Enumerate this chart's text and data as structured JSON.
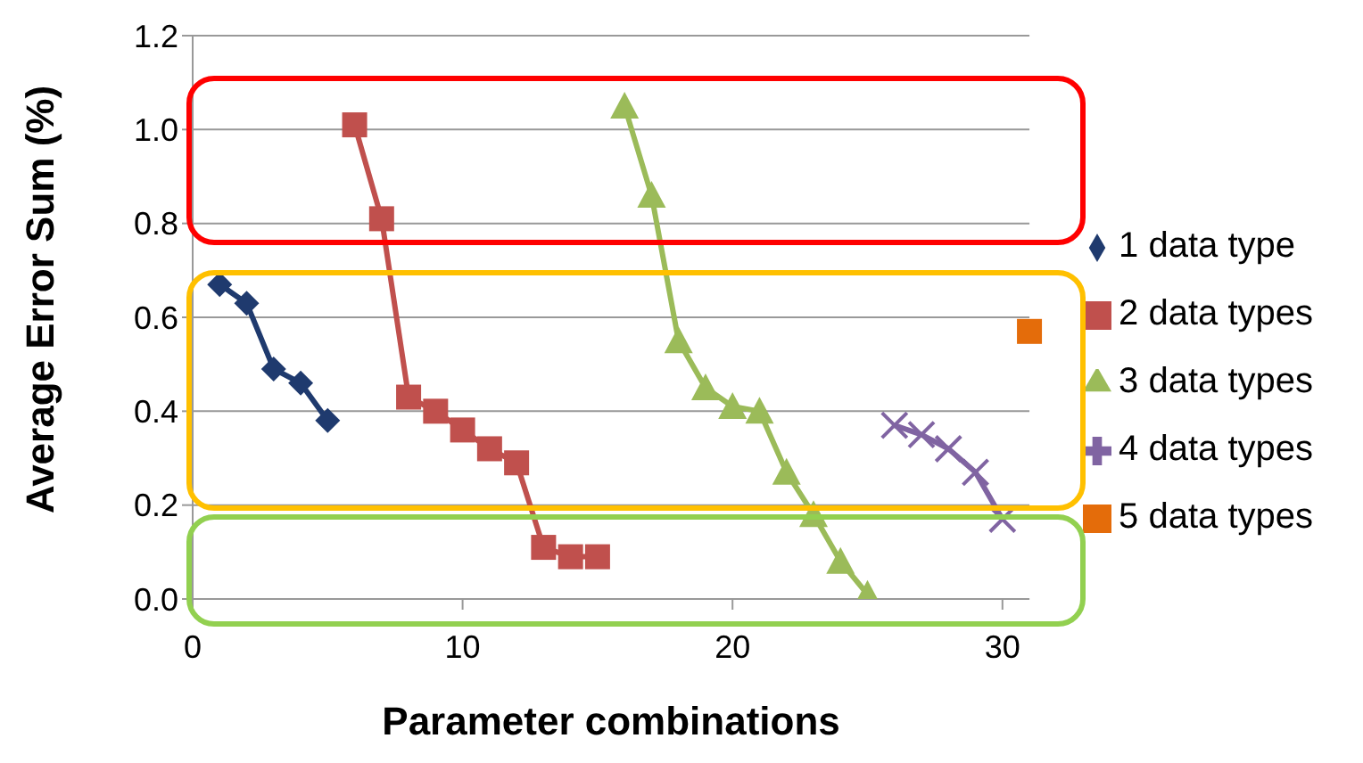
{
  "chart_data": {
    "type": "line",
    "xlabel": "Parameter combinations",
    "ylabel": "Average Error Sum (%)",
    "xlim": [
      0,
      31
    ],
    "xticks": [
      0,
      10,
      20,
      30
    ],
    "ylim": [
      0,
      1.2
    ],
    "yticks": [
      {
        "value": 0,
        "label": "0.0"
      },
      {
        "value": 0.2,
        "label": "0.2"
      },
      {
        "value": 0.4,
        "label": "0.4"
      },
      {
        "value": 0.6,
        "label": "0.6"
      },
      {
        "value": 0.8,
        "label": "0.8"
      },
      {
        "value": 1,
        "label": "1.0"
      },
      {
        "value": 1.2,
        "label": "1.2"
      }
    ],
    "grid": "y",
    "legend": "right",
    "line_style": "solid",
    "series": [
      {
        "name": "1 data type",
        "color": "#1f3a6e",
        "marker": "diamond",
        "x": [
          1,
          2,
          3,
          4,
          5
        ],
        "values": [
          0.67,
          0.63,
          0.49,
          0.46,
          0.38
        ]
      },
      {
        "name": "2 data types",
        "color": "#c0504d",
        "marker": "square",
        "x": [
          6,
          7,
          8,
          9,
          10,
          11,
          12,
          13,
          14,
          15
        ],
        "values": [
          1.01,
          0.81,
          0.43,
          0.4,
          0.36,
          0.32,
          0.29,
          0.11,
          0.09,
          0.09
        ]
      },
      {
        "name": "3 data types",
        "color": "#9bbb59",
        "marker": "triangle",
        "x": [
          16,
          17,
          18,
          19,
          20,
          21,
          22,
          23,
          24,
          25
        ],
        "values": [
          1.05,
          0.86,
          0.55,
          0.45,
          0.41,
          0.4,
          0.27,
          0.18,
          0.08,
          0.01
        ]
      },
      {
        "name": "4 data types",
        "color": "#8064a2",
        "marker": "cross",
        "x": [
          26,
          27,
          28,
          29,
          30
        ],
        "values": [
          0.37,
          0.35,
          0.32,
          0.27,
          0.17
        ]
      },
      {
        "name": "5 data types",
        "type": "scatter",
        "color": "#e46c0a",
        "marker": "square",
        "x": [
          31
        ],
        "values": [
          0.57
        ]
      }
    ]
  }
}
